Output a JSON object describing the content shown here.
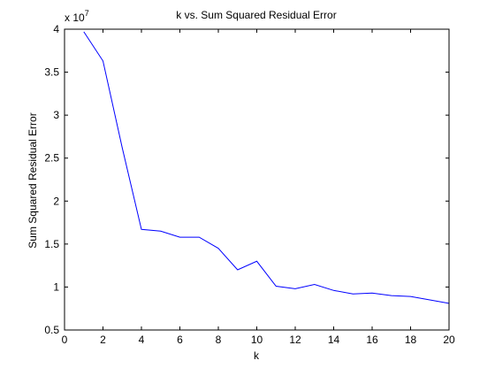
{
  "chart_data": {
    "type": "line",
    "title": "k vs. Sum Squared Residual Error",
    "xlabel": "k",
    "ylabel": "Sum Squared Residual Error",
    "y_multiplier_label": {
      "base": "x 10",
      "exponent": "7"
    },
    "xlim": [
      0,
      20
    ],
    "ylim": [
      0.5,
      4
    ],
    "x_ticks": [
      0,
      2,
      4,
      6,
      8,
      10,
      12,
      14,
      16,
      18,
      20
    ],
    "x_tick_labels": [
      "0",
      "2",
      "4",
      "6",
      "8",
      "10",
      "12",
      "14",
      "16",
      "18",
      "20"
    ],
    "y_ticks": [
      0.5,
      1,
      1.5,
      2,
      2.5,
      3,
      3.5,
      4
    ],
    "y_tick_labels": [
      "0.5",
      "1",
      "1.5",
      "2",
      "2.5",
      "3",
      "3.5",
      "4"
    ],
    "grid": false,
    "line_color": "#0000ff",
    "series": [
      {
        "x": [
          1,
          2,
          3,
          4,
          5,
          6,
          7,
          8,
          9,
          10,
          11,
          12,
          13,
          14,
          15,
          16,
          17,
          18,
          19,
          20
        ],
        "values": [
          3.97,
          3.63,
          2.62,
          1.67,
          1.65,
          1.58,
          1.58,
          1.45,
          1.2,
          1.3,
          1.01,
          0.98,
          1.03,
          0.96,
          0.92,
          0.93,
          0.9,
          0.89,
          0.85,
          0.81
        ]
      }
    ]
  }
}
